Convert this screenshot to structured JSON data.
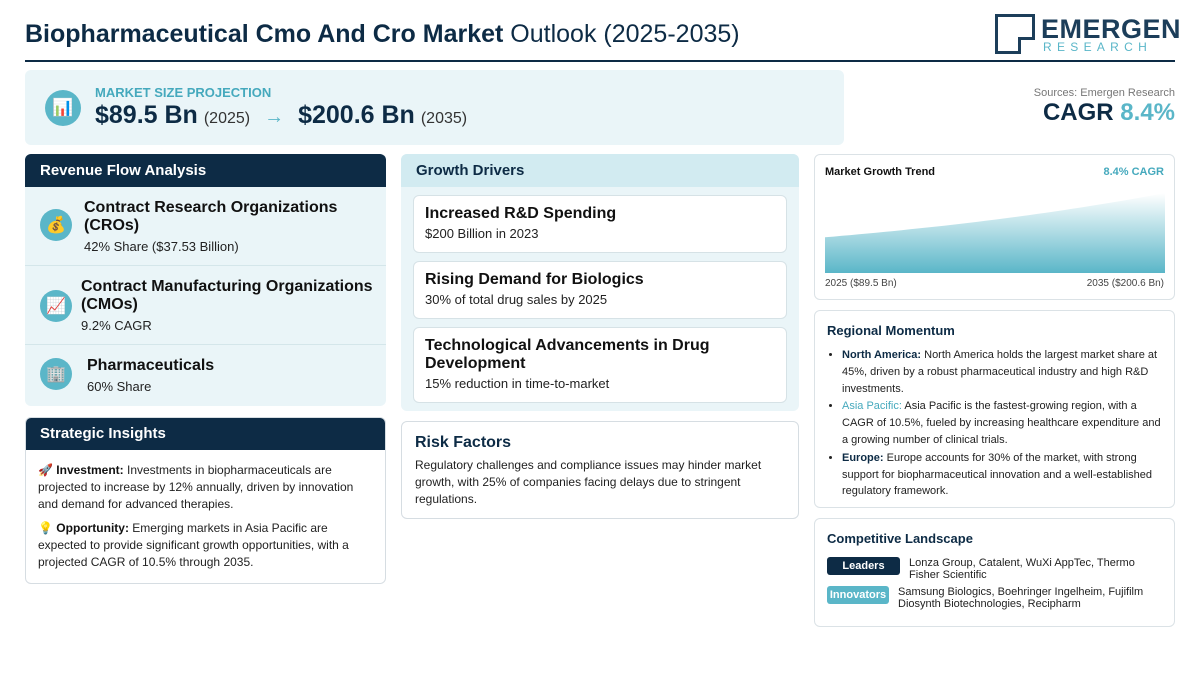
{
  "header": {
    "title_bold": "Biopharmaceutical Cmo And Cro Market",
    "title_rest": "Outlook (2025-2035)",
    "logo_name": "EMERGEN",
    "logo_sub": "RESEARCH"
  },
  "projection": {
    "label": "MARKET SIZE PROJECTION",
    "start_value": "$89.5 Bn",
    "start_year": "(2025)",
    "arrow": "→",
    "end_value": "$200.6 Bn",
    "end_year": "(2035)",
    "icon": "chart-icon"
  },
  "summary": {
    "sources": "Sources: Emergen Research",
    "cagr_label": "CAGR",
    "cagr_value": "8.4%"
  },
  "revenue_flow": {
    "heading": "Revenue Flow Analysis",
    "items": [
      {
        "icon": "money-bag-icon",
        "title": "Contract Research Organizations (CROs)",
        "detail": "42% Share ($37.53 Billion)"
      },
      {
        "icon": "trend-chart-icon",
        "title": "Contract Manufacturing Organizations (CMOs)",
        "detail": "9.2% CAGR"
      },
      {
        "icon": "building-icon",
        "title": "Pharmaceuticals",
        "detail": "60% Share"
      }
    ]
  },
  "strategic": {
    "heading": "Strategic Insights",
    "items": [
      {
        "icon": "🚀",
        "label": "Investment:",
        "text": "Investments in biopharmaceuticals are projected to increase by 12% annually, driven by innovation and demand for advanced therapies."
      },
      {
        "icon": "💡",
        "label": "Opportunity:",
        "text": "Emerging markets in Asia Pacific are expected to provide significant growth opportunities, with a projected CAGR of 10.5% through 2035."
      }
    ]
  },
  "growth_drivers": {
    "heading": "Growth Drivers",
    "items": [
      {
        "title": "Increased R&D Spending",
        "detail": "$200 Billion in 2023"
      },
      {
        "title": "Rising Demand for Biologics",
        "detail": "30% of total drug sales by 2025"
      },
      {
        "title": "Technological Advancements in Drug Development",
        "detail": "15% reduction in time-to-market"
      }
    ]
  },
  "risk": {
    "heading": "Risk Factors",
    "text": "Regulatory challenges and compliance issues may hinder market growth, with 25% of companies facing delays due to stringent regulations."
  },
  "trend": {
    "heading": "Market Growth Trend",
    "cagr_label": "8.4% CAGR",
    "start_label": "2025 ($89.5 Bn)",
    "end_label": "2035 ($200.6 Bn)"
  },
  "chart_data": {
    "type": "area",
    "x": [
      2025,
      2035
    ],
    "values": [
      89.5,
      200.6
    ],
    "unit": "$ Bn",
    "xlabel": "",
    "ylabel": "",
    "colors": {
      "fill_top": "#ffffff",
      "fill_bottom": "#5ab6c8"
    }
  },
  "regional": {
    "heading": "Regional Momentum",
    "items": [
      {
        "region": "North America:",
        "text": "North America holds the largest market share at 45%, driven by a robust pharmaceutical industry and high R&D investments."
      },
      {
        "region": "Asia Pacific:",
        "text": "Asia Pacific is the fastest-growing region, with a CAGR of 10.5%, fueled by increasing healthcare expenditure and a growing number of clinical trials."
      },
      {
        "region": "Europe:",
        "text": "Europe accounts for 30% of the market, with strong support for biopharmaceutical innovation and a well-established regulatory framework."
      }
    ]
  },
  "competitive": {
    "heading": "Competitive Landscape",
    "rows": [
      {
        "badge": "Leaders",
        "companies": "Lonza Group, Catalent, WuXi AppTec, Thermo Fisher Scientific"
      },
      {
        "badge": "Innovators",
        "companies": "Samsung Biologics, Boehringer Ingelheim, Fujifilm Diosynth Biotechnologies, Recipharm"
      }
    ]
  },
  "colors": {
    "navy": "#0d2b45",
    "teal": "#5ab6c8",
    "light_panel": "#eaf5f8"
  }
}
